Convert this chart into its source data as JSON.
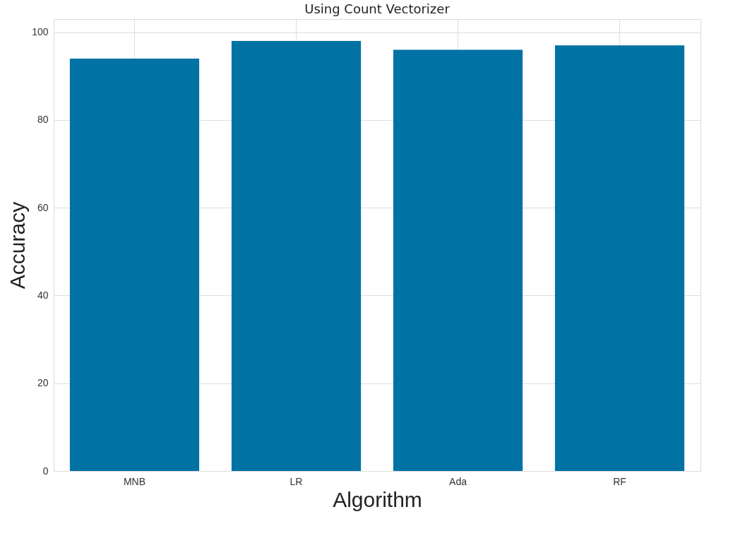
{
  "chart_data": {
    "type": "bar",
    "title": "Using Count Vectorizer",
    "xlabel": "Algorithm",
    "ylabel": "Accuracy",
    "categories": [
      "MNB",
      "LR",
      "Ada",
      "RF"
    ],
    "values": [
      94,
      98,
      96,
      97
    ],
    "color": "#0072a4",
    "ylim": [
      0,
      103
    ],
    "yticks": [
      0,
      20,
      40,
      60,
      80,
      100
    ],
    "grid": true
  }
}
